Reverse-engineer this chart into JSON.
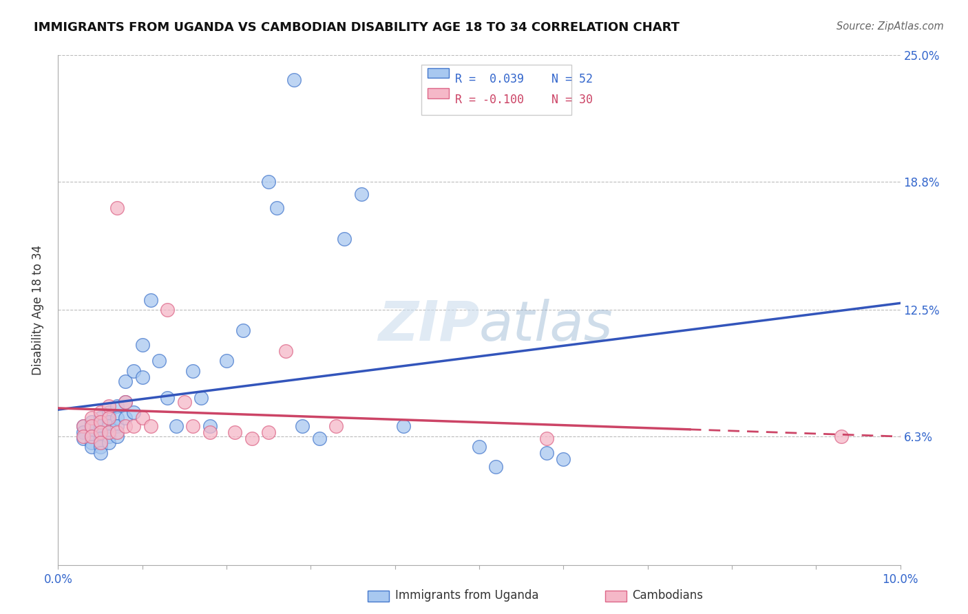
{
  "title": "IMMIGRANTS FROM UGANDA VS CAMBODIAN DISABILITY AGE 18 TO 34 CORRELATION CHART",
  "source": "Source: ZipAtlas.com",
  "ylabel_label": "Disability Age 18 to 34",
  "xlim": [
    0.0,
    0.1
  ],
  "ylim": [
    0.0,
    0.25
  ],
  "ytick_labels": [
    "6.3%",
    "12.5%",
    "18.8%",
    "25.0%"
  ],
  "ytick_values": [
    0.063,
    0.125,
    0.188,
    0.25
  ],
  "blue_color": "#A8C8F0",
  "pink_color": "#F5B8C8",
  "blue_edge_color": "#4477CC",
  "pink_edge_color": "#DD6688",
  "blue_line_color": "#3355BB",
  "pink_line_color": "#CC4466",
  "watermark_color": "#CCDDEE",
  "note": "X axis = immigrants from Uganda fraction, Y axis = disability age 18-34 fraction",
  "blue_points_x": [
    0.003,
    0.003,
    0.003,
    0.004,
    0.004,
    0.004,
    0.004,
    0.004,
    0.005,
    0.005,
    0.005,
    0.005,
    0.005,
    0.005,
    0.005,
    0.006,
    0.006,
    0.006,
    0.006,
    0.006,
    0.007,
    0.007,
    0.007,
    0.007,
    0.008,
    0.008,
    0.008,
    0.009,
    0.009,
    0.01,
    0.01,
    0.011,
    0.012,
    0.013,
    0.014,
    0.016,
    0.017,
    0.018,
    0.02,
    0.022,
    0.025,
    0.026,
    0.029,
    0.031,
    0.034,
    0.036,
    0.041,
    0.05,
    0.052,
    0.058,
    0.06,
    0.028
  ],
  "blue_points_y": [
    0.068,
    0.065,
    0.062,
    0.07,
    0.067,
    0.063,
    0.06,
    0.058,
    0.072,
    0.068,
    0.065,
    0.062,
    0.06,
    0.058,
    0.055,
    0.075,
    0.07,
    0.068,
    0.063,
    0.06,
    0.078,
    0.072,
    0.068,
    0.063,
    0.09,
    0.08,
    0.072,
    0.095,
    0.075,
    0.108,
    0.092,
    0.13,
    0.1,
    0.082,
    0.068,
    0.095,
    0.082,
    0.068,
    0.1,
    0.115,
    0.188,
    0.175,
    0.068,
    0.062,
    0.16,
    0.182,
    0.068,
    0.058,
    0.048,
    0.055,
    0.052,
    0.238
  ],
  "pink_points_x": [
    0.003,
    0.003,
    0.004,
    0.004,
    0.004,
    0.005,
    0.005,
    0.005,
    0.005,
    0.006,
    0.006,
    0.006,
    0.007,
    0.007,
    0.008,
    0.008,
    0.009,
    0.01,
    0.011,
    0.013,
    0.015,
    0.016,
    0.018,
    0.021,
    0.023,
    0.025,
    0.027,
    0.033,
    0.058,
    0.093
  ],
  "pink_points_y": [
    0.068,
    0.063,
    0.072,
    0.068,
    0.063,
    0.075,
    0.07,
    0.065,
    0.06,
    0.078,
    0.072,
    0.065,
    0.175,
    0.065,
    0.08,
    0.068,
    0.068,
    0.072,
    0.068,
    0.125,
    0.08,
    0.068,
    0.065,
    0.065,
    0.062,
    0.065,
    0.105,
    0.068,
    0.062,
    0.063
  ]
}
